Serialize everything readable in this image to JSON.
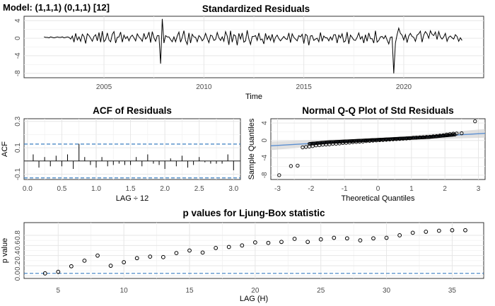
{
  "model_label": "Model: (1,1,1) (0,1,1) [12]",
  "colors": {
    "series": "#000000",
    "dashed": "#3a7fc1",
    "fit_line": "#5b8fd1",
    "band": "#cccccc"
  },
  "chart_data": [
    {
      "id": "resid",
      "type": "line",
      "title": "Standardized Residuals",
      "xlabel": "Time",
      "ylabel": "",
      "xlim": [
        2001,
        2024
      ],
      "ylim": [
        -9,
        5
      ],
      "xticks": [
        2005,
        2010,
        2015,
        2020
      ],
      "yticks": [
        4,
        0,
        -4,
        -8
      ],
      "grid": true,
      "x_start": 2002.0,
      "x_step": 0.0833333,
      "values": [
        0.3,
        0.2,
        0.2,
        0.1,
        0.3,
        0.2,
        0.1,
        0.2,
        0.3,
        0.2,
        0.2,
        0.3,
        0.1,
        0.2,
        0.3,
        0.2,
        -0.2,
        0.5,
        -0.9,
        1.1,
        -0.4,
        0.3,
        -0.7,
        0.9,
        0.4,
        -1.2,
        1.0,
        0.6,
        0.0,
        -0.7,
        0.4,
        0.8,
        -0.6,
        1.3,
        -0.9,
        1.6,
        -0.8,
        -0.3,
        1.2,
        -0.4,
        -0.8,
        0.9,
        1.5,
        -1.1,
        0.2,
        0.3,
        1.4,
        -0.9,
        0.7,
        -0.1,
        0.4,
        -0.6,
        0.3,
        0.7,
        0.1,
        -0.6,
        1.0,
        0.3,
        -0.1,
        -0.7,
        1.1,
        -0.2,
        0.3,
        1.4,
        -1.0,
        1.5,
        0.1,
        -0.7,
        0.6,
        0.6,
        -5.8,
        4.4,
        -1.1,
        0.6,
        0.3,
        0.3,
        -0.3,
        -0.8,
        0.3,
        -0.8,
        0.5,
        1.4,
        -0.9,
        0.2,
        1.7,
        -0.5,
        -1.4,
        1.2,
        -1.1,
        0.9,
        0.3,
        0.2,
        -0.8,
        0.6,
        0.2,
        -0.6,
        -0.1,
        1.1,
        0.0,
        -1.0,
        0.7,
        0.5,
        -0.5,
        -0.3,
        1.3,
        0.1,
        -0.5,
        0.3,
        -0.7,
        1.5,
        0.5,
        -1.5,
        1.7,
        -0.9,
        0.8,
        0.5,
        -1.6,
        1.1,
        -0.2,
        1.2,
        -0.9,
        -0.6,
        1.8,
        -0.2,
        -1.4,
        0.4,
        0.4,
        0.6,
        -0.5,
        1.2,
        -0.4,
        -0.2,
        -1.3,
        1.1,
        -0.3,
        0.5,
        -0.5,
        0.9,
        -0.9,
        0.2,
        0.7,
        -0.1,
        -0.6,
        -0.1,
        0.4,
        -0.1,
        -0.3,
        1.2,
        -1.0,
        1.0,
        0.2,
        -0.2,
        -0.6,
        0.6,
        0.3,
        0.9,
        -1.2,
        0.9,
        0.6,
        -1.6,
        0.5,
        0.6,
        -0.5,
        -0.2,
        0.0,
        -0.8,
        1.3,
        -0.7,
        0.5,
        0.1,
        0.1,
        -0.6,
        0.3,
        -0.4,
        0.8,
        0.8,
        -1.1,
        0.7,
        0.1,
        1.0,
        -0.9,
        -0.6,
        1.4,
        -1.3,
        0.7,
        0.2,
        -0.4,
        -0.5,
        0.2,
        1.2,
        -0.2,
        0.4,
        -1.1,
        0.8,
        -0.7,
        1.2,
        -0.1,
        -0.1,
        -1.1,
        1.7,
        -0.9,
        -0.5,
        0.3,
        0.4,
        -0.1,
        0.6,
        -0.4,
        -1.3,
        0.2,
        0.3,
        -8.0,
        -1.1,
        0.8,
        2.3,
        1.1,
        0.7,
        -0.4,
        0.8,
        -1.0,
        0.5,
        1.1,
        0.4,
        0.2,
        -0.7,
        0.7,
        1.0,
        1.6,
        -0.9,
        0.7,
        1.5,
        1.0,
        0.0,
        1.7,
        0.9,
        0.6,
        1.4,
        -0.3,
        1.5,
        0.3,
        -0.2,
        0.3,
        1.1,
        -0.7,
        0.2,
        0.5,
        0.1,
        -0.2,
        0.8,
        0.4,
        -0.7,
        0.1,
        -0.5
      ]
    },
    {
      "id": "acf",
      "type": "bar",
      "title": "ACF of Residuals",
      "xlabel": "LAG ÷ 12",
      "ylabel": "ACF",
      "xlim": [
        -0.05,
        3.1
      ],
      "ylim": [
        -0.14,
        0.32
      ],
      "xticks": [
        0.0,
        0.5,
        1.0,
        1.5,
        2.0,
        2.5,
        3.0
      ],
      "yticks": [
        0.3,
        0.1,
        -0.1
      ],
      "confidence_limit": 0.128,
      "grid": true,
      "lags": [
        0.0833,
        0.1667,
        0.25,
        0.3333,
        0.4167,
        0.5,
        0.5833,
        0.6667,
        0.75,
        0.8333,
        0.9167,
        1.0,
        1.0833,
        1.1667,
        1.25,
        1.3333,
        1.4167,
        1.5,
        1.5833,
        1.6667,
        1.75,
        1.8333,
        1.9167,
        2.0,
        2.0833,
        2.1667,
        2.25,
        2.3333,
        2.4167,
        2.5,
        2.5833,
        2.6667,
        2.75,
        2.8333,
        2.9167,
        3.0
      ],
      "values": [
        0.05,
        -0.05,
        0.03,
        -0.04,
        0.04,
        -0.04,
        0.05,
        -0.06,
        0.13,
        0.03,
        -0.03,
        -0.05,
        0.03,
        -0.04,
        -0.03,
        -0.02,
        -0.03,
        -0.03,
        0.03,
        -0.04,
        0.05,
        -0.02,
        -0.03,
        -0.06,
        0.02,
        -0.04,
        0.04,
        -0.05,
        -0.03,
        0.03,
        -0.01,
        -0.02,
        -0.02,
        -0.02,
        0.05,
        -0.07
      ]
    },
    {
      "id": "qq",
      "type": "scatter",
      "title": "Normal Q-Q Plot of Std Residuals",
      "xlabel": "Theoretical Quantiles",
      "ylabel": "Sample Quantiles",
      "xlim": [
        -3.2,
        3.2
      ],
      "ylim": [
        -9,
        5
      ],
      "xticks": [
        -3,
        -2,
        -1,
        0,
        1,
        2,
        3
      ],
      "yticks": [
        4,
        0,
        -4,
        -8
      ],
      "grid": true,
      "fit_line": {
        "intercept": 0.2,
        "slope": 0.45
      },
      "band_halfwidth": {
        "center": 0.3,
        "edge": 1.0
      },
      "points": [
        [
          -2.95,
          -8.0
        ],
        [
          -2.6,
          -5.9
        ],
        [
          -2.4,
          -5.8
        ],
        [
          -2.25,
          -1.6
        ],
        [
          -2.15,
          -1.5
        ],
        [
          -2.05,
          -1.4
        ],
        [
          -1.95,
          -1.3
        ],
        [
          -1.85,
          -1.15
        ],
        [
          -1.75,
          -1.1
        ],
        [
          -1.65,
          -1.0
        ],
        [
          -1.55,
          -0.95
        ],
        [
          -1.45,
          -0.9
        ],
        [
          -1.35,
          -0.8
        ],
        [
          -1.25,
          -0.75
        ],
        [
          -1.15,
          -0.7
        ],
        [
          -1.05,
          -0.6
        ],
        [
          -0.95,
          -0.55
        ],
        [
          -0.85,
          -0.5
        ],
        [
          -0.75,
          -0.4
        ],
        [
          -0.65,
          -0.35
        ],
        [
          -0.55,
          -0.3
        ],
        [
          -0.45,
          -0.25
        ],
        [
          -0.35,
          -0.15
        ],
        [
          -0.25,
          -0.1
        ],
        [
          -0.15,
          -0.05
        ],
        [
          -0.05,
          0.0
        ],
        [
          0.05,
          0.05
        ],
        [
          0.15,
          0.1
        ],
        [
          0.25,
          0.15
        ],
        [
          0.35,
          0.2
        ],
        [
          0.45,
          0.25
        ],
        [
          0.55,
          0.3
        ],
        [
          0.65,
          0.35
        ],
        [
          0.75,
          0.4
        ],
        [
          0.85,
          0.45
        ],
        [
          0.95,
          0.5
        ],
        [
          1.05,
          0.6
        ],
        [
          1.15,
          0.65
        ],
        [
          1.25,
          0.7
        ],
        [
          1.35,
          0.75
        ],
        [
          1.45,
          0.8
        ],
        [
          1.55,
          0.85
        ],
        [
          1.65,
          0.95
        ],
        [
          1.75,
          1.0
        ],
        [
          1.85,
          1.1
        ],
        [
          1.95,
          1.2
        ],
        [
          2.05,
          1.35
        ],
        [
          2.15,
          1.45
        ],
        [
          2.25,
          1.55
        ],
        [
          2.35,
          1.6
        ],
        [
          2.5,
          1.65
        ],
        [
          2.9,
          4.4
        ]
      ]
    },
    {
      "id": "ljung",
      "type": "scatter",
      "title": "p values for Ljung-Box statistic",
      "xlabel": "LAG (H)",
      "ylabel": "p value",
      "xlim": [
        2.4,
        37.4
      ],
      "ylim": [
        -0.05,
        1.05
      ],
      "xticks": [
        5,
        10,
        15,
        20,
        25,
        30,
        35
      ],
      "yticks": [
        0.0,
        0.2,
        0.4,
        0.6,
        0.8
      ],
      "reference_line": 0.05,
      "grid": true,
      "x": [
        4,
        5,
        6,
        7,
        8,
        9,
        10,
        11,
        12,
        13,
        14,
        15,
        16,
        17,
        18,
        19,
        20,
        21,
        22,
        23,
        24,
        25,
        26,
        27,
        28,
        29,
        30,
        31,
        32,
        33,
        34,
        35,
        36
      ],
      "values": [
        0.05,
        0.08,
        0.19,
        0.3,
        0.4,
        0.2,
        0.27,
        0.35,
        0.38,
        0.37,
        0.45,
        0.5,
        0.46,
        0.55,
        0.57,
        0.6,
        0.66,
        0.65,
        0.67,
        0.73,
        0.67,
        0.72,
        0.75,
        0.74,
        0.7,
        0.74,
        0.75,
        0.8,
        0.85,
        0.87,
        0.89,
        0.9,
        0.9
      ]
    }
  ]
}
